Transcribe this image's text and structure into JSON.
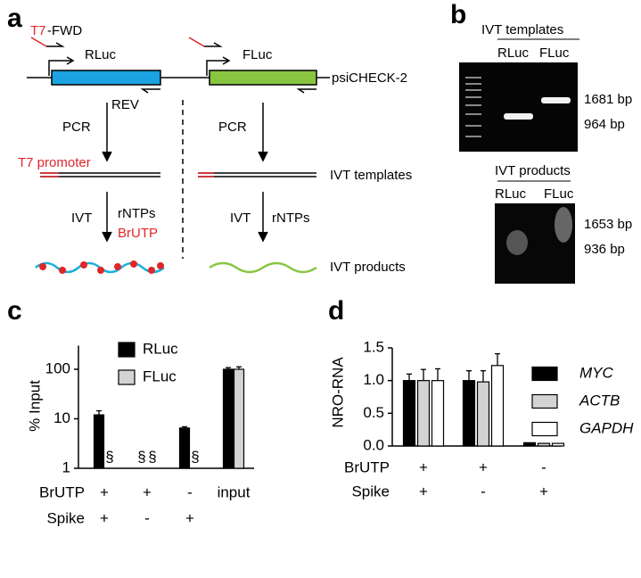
{
  "panel_a": {
    "letter": "a",
    "t7": "T7",
    "fwd": "-FWD",
    "rluc": "RLuc",
    "fluc": "FLuc",
    "rev": "REV",
    "plasmid": "psiCHECK-2",
    "pcr_left": "PCR",
    "pcr_right": "PCR",
    "t7_promoter": "T7 promoter",
    "ivt_templates": "IVT templates",
    "ivt_left": "IVT",
    "ivt_right": "IVT",
    "rntps_left": "rNTPs",
    "brutp": "BrUTP",
    "rntps_right": "rNTPs",
    "ivt_products": "IVT products"
  },
  "panel_b": {
    "letter": "b",
    "templates": {
      "title": "IVT templates",
      "lanes": [
        "RLuc",
        "FLuc"
      ],
      "sizes": [
        "1681 bp",
        "964 bp"
      ]
    },
    "products": {
      "title": "IVT products",
      "lanes": [
        "RLuc",
        "FLuc"
      ],
      "sizes": [
        "1653 bp",
        "936 bp"
      ]
    }
  },
  "chart_data": [
    {
      "type": "bar",
      "letter": "c",
      "ylabel": "% Input",
      "log_scale": true,
      "ylim": [
        1,
        300
      ],
      "yticks": [
        1,
        10,
        100
      ],
      "categories": [
        "+",
        "+",
        "-",
        "input"
      ],
      "x_label_rows": [
        {
          "label": "BrUTP",
          "categories": [
            "+",
            "+",
            "-",
            "input"
          ]
        },
        {
          "label": "Spike",
          "categories": [
            "+",
            "-",
            "+",
            null
          ]
        }
      ],
      "series": [
        {
          "name": "RLuc",
          "color": "#000000",
          "values": [
            12,
            null,
            6.5,
            100
          ],
          "errors": [
            2.5,
            null,
            0.4,
            8
          ],
          "value_labels": [
            null,
            "§",
            null,
            null
          ]
        },
        {
          "name": "FLuc",
          "color": "#d3d3d3",
          "values": [
            null,
            null,
            null,
            100
          ],
          "errors": [
            null,
            null,
            null,
            12
          ],
          "value_labels": [
            "§",
            "§",
            "§",
            null
          ]
        }
      ]
    },
    {
      "type": "bar",
      "letter": "d",
      "ylabel": "NRO-RNA",
      "log_scale": false,
      "ylim": [
        0,
        1.5
      ],
      "yticks": [
        {
          "value": 0,
          "label": "0.0"
        },
        0.5,
        {
          "value": 1,
          "label": "1.0"
        },
        1.5
      ],
      "categories": [
        "+",
        "+",
        "-"
      ],
      "x_label_rows": [
        {
          "label": "BrUTP",
          "categories": [
            "+",
            "+",
            "-"
          ]
        },
        {
          "label": "Spike",
          "categories": [
            "+",
            "-",
            "+"
          ]
        }
      ],
      "series": [
        {
          "name": "MYC",
          "color": "#000000",
          "values": [
            1.0,
            1.0,
            0.05
          ],
          "errors": [
            0.1,
            0.15,
            null
          ]
        },
        {
          "name": "ACTB",
          "color": "#d3d3d3",
          "values": [
            1.0,
            0.98,
            0.04
          ],
          "errors": [
            0.17,
            0.17,
            null
          ]
        },
        {
          "name": "GAPDH",
          "color": "#ffffff",
          "values": [
            1.0,
            1.23,
            0.04
          ],
          "errors": [
            0.18,
            0.18,
            null
          ]
        }
      ]
    }
  ]
}
